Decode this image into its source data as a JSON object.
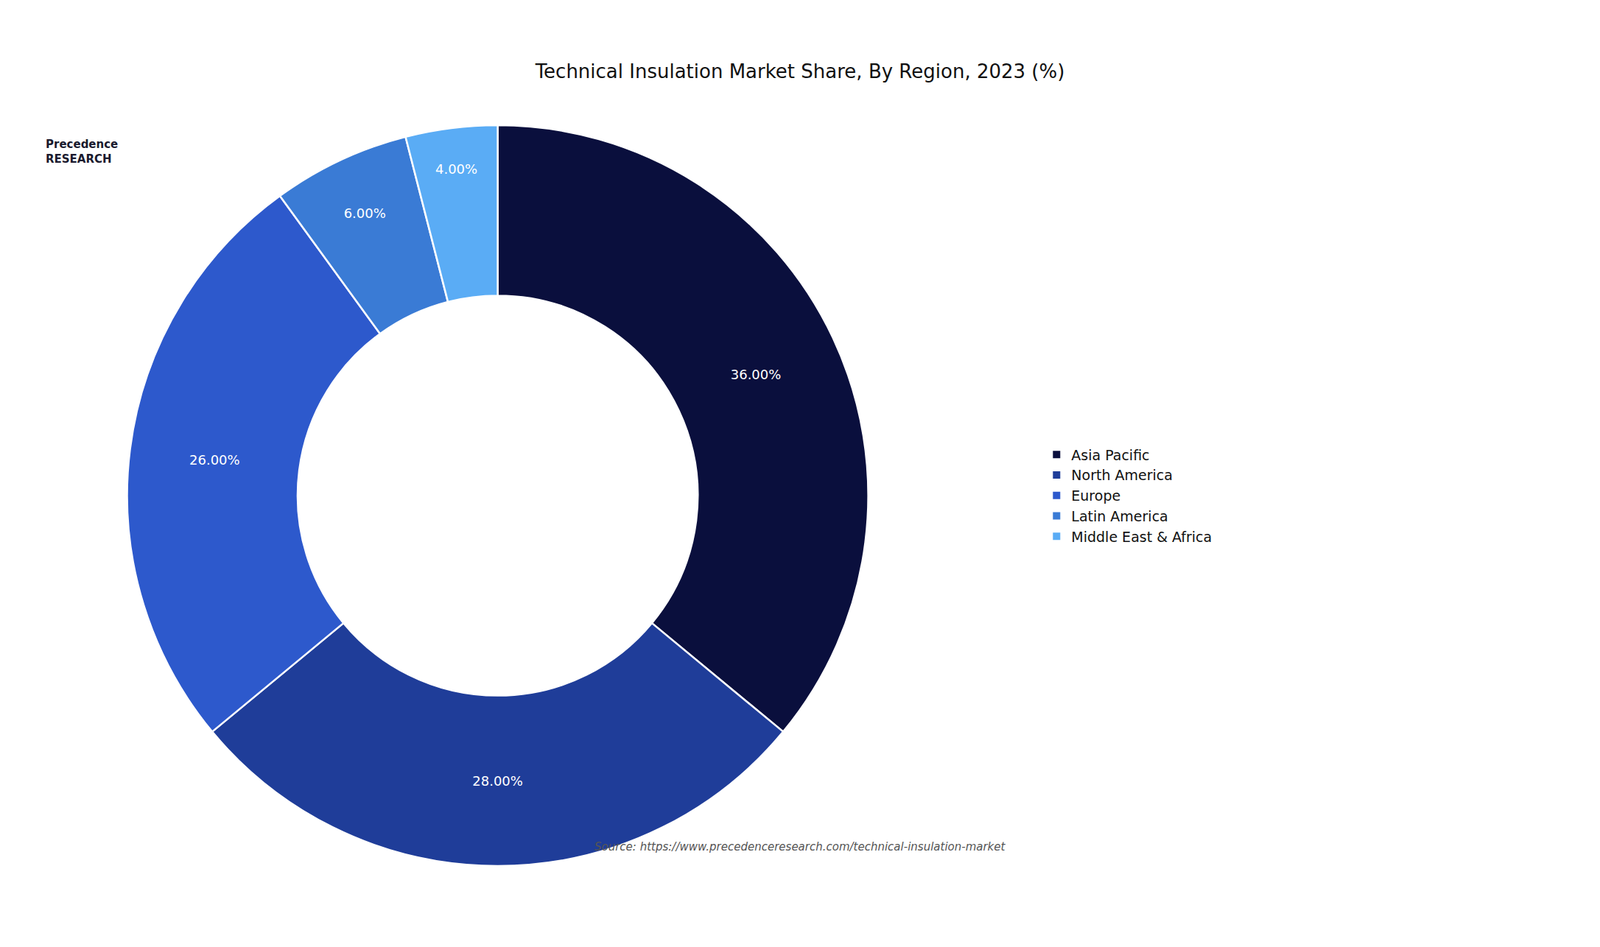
{
  "chart_data": {
    "type": "donut",
    "title": "Technical Insulation Market Share, By Region, 2023 (%)",
    "categories": [
      "Asia Pacific",
      "North America",
      "Europe",
      "Latin America",
      "Middle East & Africa"
    ],
    "values": [
      36,
      28,
      26,
      6,
      4
    ],
    "value_labels": [
      "36.00%",
      "28.00%",
      "26.00%",
      "6.00%",
      "4.00%"
    ],
    "colors": [
      "#0a0f3d",
      "#1f3d99",
      "#2d59cc",
      "#3a7bd5",
      "#5aacf5"
    ],
    "data_labels": true,
    "legend": "right",
    "annotations": [
      "Precedence\nRESEARCH",
      "Source: https://www.precedenceresearch.com/technical-insulation-market"
    ]
  }
}
